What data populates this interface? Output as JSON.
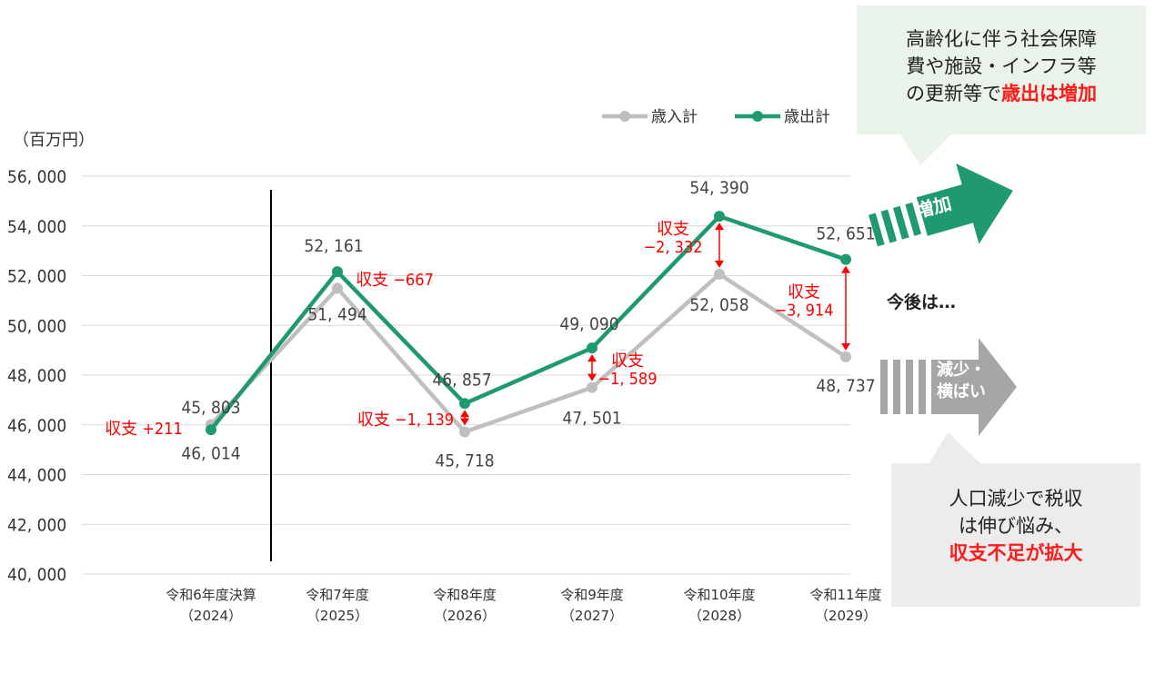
{
  "chart_data": {
    "type": "line",
    "unit_label": "（百万円）",
    "categories": [
      [
        "令和6年度決算",
        "（2024）"
      ],
      [
        "令和7年度",
        "（2025）"
      ],
      [
        "令和8年度",
        "（2026）"
      ],
      [
        "令和9年度",
        "（2027）"
      ],
      [
        "令和10年度",
        "（2028）"
      ],
      [
        "令和11年度",
        "（2029）"
      ]
    ],
    "ylim": [
      40000,
      56000
    ],
    "yticks": [
      40000,
      42000,
      44000,
      46000,
      48000,
      50000,
      52000,
      54000,
      56000
    ],
    "ytick_labels": [
      "40, 000",
      "42, 000",
      "44, 000",
      "46, 000",
      "48, 000",
      "50, 000",
      "52, 000",
      "54, 000",
      "56, 000"
    ],
    "grid": true,
    "legend_position": "top-right",
    "series": [
      {
        "name": "歳入計",
        "color": "#bfbfbf",
        "values": [
          46014,
          51494,
          45718,
          47501,
          52058,
          48737
        ],
        "labels": [
          "46, 014",
          "51, 494",
          "45, 718",
          "47, 501",
          "52, 058",
          "48, 737"
        ]
      },
      {
        "name": "歳出計",
        "color": "#1f9a6e",
        "values": [
          45803,
          52161,
          46857,
          49090,
          54390,
          52651
        ],
        "labels": [
          "45, 803",
          "52, 161",
          "46, 857",
          "49, 090",
          "54, 390",
          "52, 651"
        ]
      }
    ],
    "balance_annotations": [
      {
        "category_index": 0,
        "text": "収支 +211",
        "arrow": false
      },
      {
        "category_index": 1,
        "text": "収支 −667",
        "arrow": false
      },
      {
        "category_index": 2,
        "text": "収支 −1, 139",
        "arrow": true
      },
      {
        "category_index": 3,
        "text": "収支\n−1, 589",
        "arrow": true
      },
      {
        "category_index": 4,
        "text": "収支\n−2, 332",
        "arrow": true
      },
      {
        "category_index": 5,
        "text": "収支\n−3, 914",
        "arrow": true
      }
    ],
    "divider_after_index": 0
  },
  "callouts": {
    "top": {
      "lines": [
        "高齢化に伴う社会保障",
        "費や施設・インフラ等"
      ],
      "last_prefix": "の更新等で",
      "last_emphasis": "歳出は増加"
    },
    "bottom": {
      "lines": [
        "人口減少で税収",
        "は伸び悩み、"
      ],
      "emphasis": "収支不足が拡大"
    }
  },
  "next_label": "今後は…",
  "arrows": {
    "up": {
      "label": "増加",
      "color": "#1f9a6e"
    },
    "flat": {
      "label_lines": [
        "減少・",
        "横ばい"
      ],
      "color": "#a6a6a6"
    }
  }
}
